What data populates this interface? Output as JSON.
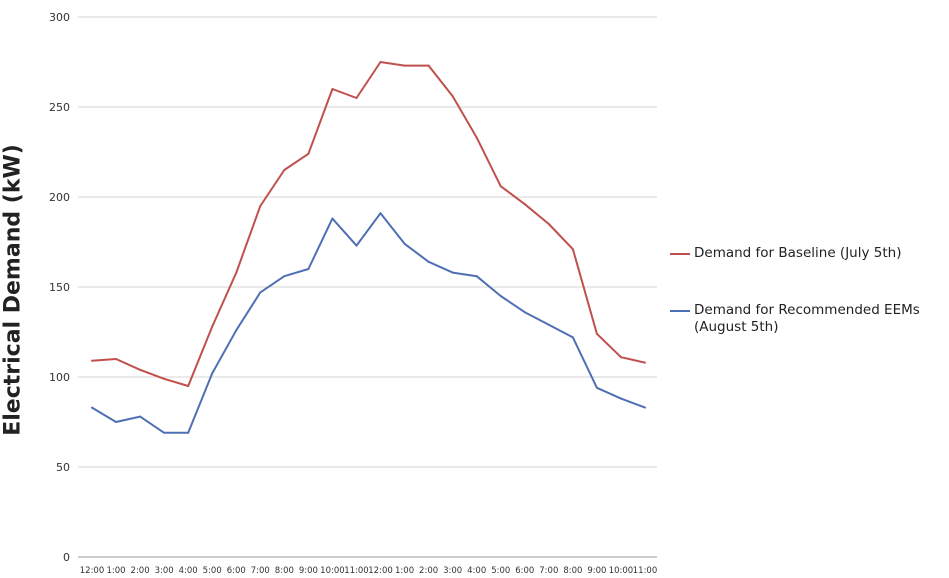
{
  "chart_data": {
    "type": "line",
    "title": "",
    "xlabel": "",
    "ylabel": "Electrical Demand (kW)",
    "ylim": [
      0,
      300
    ],
    "yticks": [
      0,
      50,
      100,
      150,
      200,
      250,
      300
    ],
    "grid": true,
    "legend_position": "right",
    "categories": [
      "12:00",
      "1:00",
      "2:00",
      "3:00",
      "4:00",
      "5:00",
      "6:00",
      "7:00",
      "8:00",
      "9:00",
      "10:00",
      "11:00",
      "12:00",
      "1:00",
      "2:00",
      "3:00",
      "4:00",
      "5:00",
      "6:00",
      "7:00",
      "8:00",
      "9:00",
      "10:00",
      "11:00"
    ],
    "series": [
      {
        "name": "Demand for Baseline (July 5th)",
        "color": "#c0504d",
        "values": [
          109,
          110,
          104,
          99,
          95,
          128,
          158,
          195,
          215,
          224,
          260,
          255,
          275,
          273,
          273,
          256,
          233,
          206,
          196,
          185,
          171,
          124,
          111,
          108
        ]
      },
      {
        "name": "Demand for Recommended EEMs\n(August 5th)",
        "color": "#4f6fb5",
        "values": [
          83,
          75,
          78,
          69,
          69,
          102,
          126,
          147,
          156,
          160,
          188,
          173,
          191,
          174,
          164,
          158,
          156,
          145,
          136,
          129,
          122,
          94,
          88,
          83
        ]
      }
    ]
  }
}
